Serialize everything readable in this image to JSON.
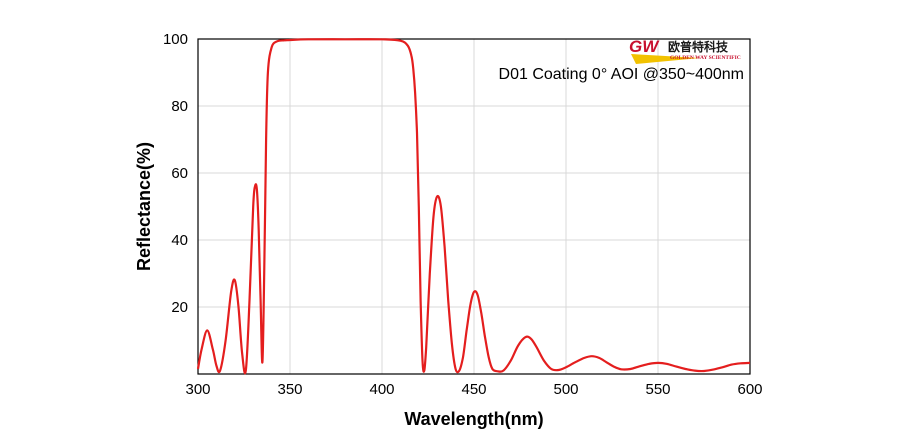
{
  "logo": {
    "mark": "GW",
    "chinese_name": "欧普特科技",
    "english_name": "GOLDEN WAY SCIENTIFIC"
  },
  "colors": {
    "curve": "#e41e1e",
    "grid": "#d9d9d9",
    "frame": "#000000",
    "logo_red": "#c8102e",
    "logo_yellow": "#f2c200"
  },
  "chart_data": {
    "type": "line",
    "title": "",
    "annotation": "D01 Coating  0°  AOI @350~400nm",
    "xlabel": "Wavelength(nm)",
    "ylabel": "Reflectance(%)",
    "xlim": [
      300,
      600
    ],
    "ylim": [
      0,
      100
    ],
    "xticks": [
      300,
      350,
      400,
      450,
      500,
      550,
      600
    ],
    "yticks": [
      20,
      40,
      60,
      80,
      100
    ],
    "grid": true,
    "legend": "none",
    "series": [
      {
        "x": [
          300,
          302,
          305,
          308,
          310,
          312,
          315,
          318,
          320,
          322,
          324,
          326,
          328,
          330,
          331,
          332,
          333,
          334,
          335,
          336,
          337,
          338,
          340,
          343,
          347,
          350,
          360,
          380,
          400,
          410,
          414,
          416,
          417,
          418,
          419,
          420,
          421,
          422,
          423,
          424,
          426,
          428,
          430,
          432,
          434,
          436,
          438,
          440,
          442,
          444,
          446,
          448,
          450,
          452,
          454,
          456,
          458,
          460,
          463,
          466,
          470,
          474,
          478,
          481,
          484,
          488,
          492,
          496,
          500,
          505,
          510,
          514,
          518,
          522,
          526,
          530,
          535,
          540,
          545,
          550,
          555,
          560,
          565,
          570,
          575,
          580,
          585,
          590,
          595,
          600
        ],
        "y": [
          1.5,
          7.5,
          13.0,
          7.5,
          2.5,
          1.0,
          10.0,
          24.5,
          28.0,
          20.0,
          6.0,
          1.0,
          22.0,
          50.0,
          56.0,
          55.0,
          43.0,
          22.0,
          3.5,
          30.0,
          70.0,
          90.0,
          97.5,
          99.3,
          99.6,
          99.7,
          99.9,
          99.9,
          99.9,
          99.5,
          98.0,
          95.0,
          91.0,
          84.0,
          72.0,
          50.0,
          22.0,
          4.0,
          1.0,
          8.0,
          30.0,
          47.0,
          53.0,
          50.0,
          38.0,
          22.0,
          9.0,
          1.5,
          1.0,
          5.0,
          13.0,
          20.5,
          24.5,
          23.5,
          18.0,
          11.0,
          5.0,
          1.5,
          0.8,
          1.0,
          4.0,
          8.5,
          11.0,
          10.5,
          8.0,
          4.0,
          1.5,
          1.2,
          2.0,
          3.5,
          4.8,
          5.3,
          4.8,
          3.5,
          2.2,
          1.4,
          1.5,
          2.3,
          3.0,
          3.3,
          3.0,
          2.2,
          1.5,
          1.0,
          0.9,
          1.3,
          2.0,
          2.8,
          3.2,
          3.3
        ]
      }
    ]
  }
}
